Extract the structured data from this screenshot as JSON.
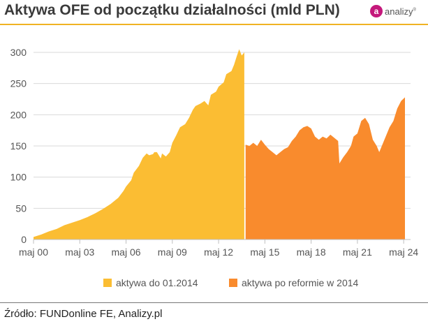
{
  "header": {
    "title": "Aktywa OFE od początku działalności (mld PLN)",
    "logo_letter": "a",
    "logo_text": "analizy",
    "logo_mark": "®"
  },
  "footer": {
    "source": "Źródło: FUNDonline FE, Analizy.pl"
  },
  "colors": {
    "series1": "#fbbd33",
    "series2": "#f98b2d",
    "grid": "#d9d9d9",
    "axis_text": "#555555",
    "title_rule": "#f0b323",
    "logo": "#c4187b"
  },
  "chart_data": {
    "type": "area",
    "title": "Aktywa OFE od początku działalności (mld PLN)",
    "xlabel": "",
    "ylabel": "",
    "xlim": [
      "2000-05",
      "2024-06"
    ],
    "ylim": [
      0,
      300
    ],
    "yticks": [
      0,
      50,
      100,
      150,
      200,
      250,
      300
    ],
    "xticks": [
      "2000-05",
      "2003-05",
      "2006-05",
      "2009-05",
      "2012-05",
      "2015-05",
      "2018-05",
      "2021-05",
      "2024-05"
    ],
    "xtick_labels": [
      "maj 00",
      "maj 03",
      "maj 06",
      "maj 09",
      "maj 12",
      "maj 15",
      "maj 18",
      "maj 21",
      "maj 24"
    ],
    "grid": true,
    "legend_position": "bottom",
    "series": [
      {
        "name": "aktywa do 01.2014",
        "color": "#fbbd33",
        "x": [
          "2000-05",
          "2000-11",
          "2001-05",
          "2001-11",
          "2002-05",
          "2002-11",
          "2003-05",
          "2003-11",
          "2004-05",
          "2004-11",
          "2005-05",
          "2005-11",
          "2006-03",
          "2006-05",
          "2006-09",
          "2006-11",
          "2007-03",
          "2007-06",
          "2007-09",
          "2007-11",
          "2008-02",
          "2008-03",
          "2008-05",
          "2008-08",
          "2008-09",
          "2008-12",
          "2009-03",
          "2009-05",
          "2009-08",
          "2009-11",
          "2010-03",
          "2010-06",
          "2010-09",
          "2010-11",
          "2011-03",
          "2011-06",
          "2011-09",
          "2011-11",
          "2012-03",
          "2012-05",
          "2012-09",
          "2012-11",
          "2013-03",
          "2013-05",
          "2013-07",
          "2013-09",
          "2013-11",
          "2014-01"
        ],
        "values": [
          4,
          8,
          13,
          17,
          23,
          27,
          31,
          36,
          42,
          49,
          57,
          67,
          78,
          85,
          95,
          107,
          118,
          131,
          138,
          135,
          137,
          140,
          140,
          130,
          138,
          133,
          140,
          155,
          167,
          180,
          185,
          195,
          208,
          214,
          218,
          222,
          215,
          232,
          237,
          245,
          252,
          265,
          270,
          280,
          293,
          305,
          295,
          300
        ]
      },
      {
        "name": "aktywa po reformie w 2014",
        "color": "#f98b2d",
        "x": [
          "2014-02",
          "2014-05",
          "2014-08",
          "2014-11",
          "2015-02",
          "2015-05",
          "2015-08",
          "2015-11",
          "2016-02",
          "2016-05",
          "2016-08",
          "2016-11",
          "2017-02",
          "2017-05",
          "2017-08",
          "2017-11",
          "2018-02",
          "2018-05",
          "2018-08",
          "2018-11",
          "2019-02",
          "2019-05",
          "2019-08",
          "2019-11",
          "2020-02",
          "2020-03",
          "2020-06",
          "2020-09",
          "2020-12",
          "2021-02",
          "2021-05",
          "2021-08",
          "2021-11",
          "2022-02",
          "2022-05",
          "2022-08",
          "2022-10",
          "2022-12",
          "2023-03",
          "2023-06",
          "2023-09",
          "2023-12",
          "2024-03",
          "2024-06"
        ],
        "values": [
          152,
          150,
          155,
          150,
          160,
          152,
          145,
          140,
          135,
          140,
          145,
          148,
          158,
          165,
          175,
          180,
          182,
          178,
          165,
          160,
          165,
          162,
          168,
          163,
          158,
          122,
          132,
          140,
          150,
          165,
          170,
          190,
          195,
          185,
          160,
          150,
          140,
          150,
          165,
          180,
          190,
          210,
          222,
          228
        ]
      }
    ]
  }
}
